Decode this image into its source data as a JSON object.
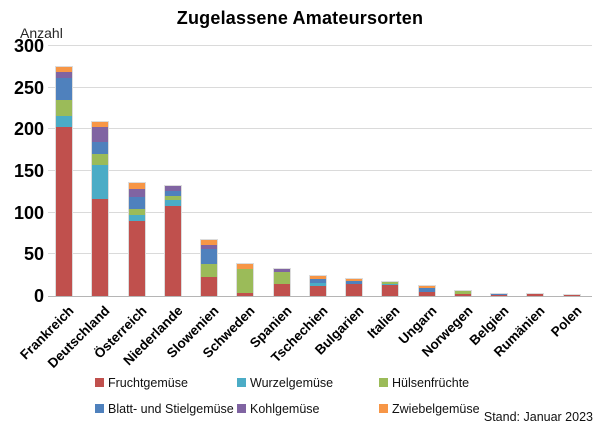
{
  "title": "Zugelassene Amateursorten",
  "footnote": "Stand: Januar 2023",
  "chart_data": {
    "type": "bar",
    "stacked": true,
    "title": "Zugelassene Amateursorten",
    "ylabel": "Anzahl",
    "xlabel": "",
    "ylim": [
      0,
      300
    ],
    "ytick_step": 50,
    "grid": "horizontal-gridlines",
    "legend_position": "bottom",
    "categories": [
      "Frankreich",
      "Deutschland",
      "Österreich",
      "Niederlande",
      "Slowenien",
      "Schweden",
      "Spanien",
      "Tschechien",
      "Bulgarien",
      "Italien",
      "Ungarn",
      "Norwegen",
      "Belgien",
      "Rumänien",
      "Polen"
    ],
    "series": [
      {
        "name": "Fruchtgemüse",
        "color": "#C0504D",
        "values": [
          203,
          117,
          90,
          108,
          23,
          4,
          15,
          12,
          14,
          13,
          5,
          3,
          1,
          3,
          1
        ]
      },
      {
        "name": "Wurzelgemüse",
        "color": "#4BACC6",
        "values": [
          13,
          40,
          7,
          7,
          0,
          0,
          0,
          4,
          0,
          2,
          0,
          0,
          0,
          0,
          0
        ]
      },
      {
        "name": "Hülsenfrüchte",
        "color": "#9BBB59",
        "values": [
          19,
          14,
          7,
          5,
          16,
          28,
          14,
          0,
          0,
          2,
          0,
          3,
          0,
          0,
          0
        ]
      },
      {
        "name": "Blatt- und Stielgemüse",
        "color": "#4F81BD",
        "values": [
          27,
          14,
          15,
          6,
          17,
          0,
          0,
          5,
          4,
          0,
          5,
          0,
          2,
          0,
          0
        ]
      },
      {
        "name": "Kohlgemüse",
        "color": "#8064A2",
        "values": [
          7,
          18,
          9,
          6,
          5,
          0,
          3,
          0,
          0,
          0,
          0,
          0,
          0,
          0,
          0
        ]
      },
      {
        "name": "Zwiebelgemüse",
        "color": "#F79646",
        "values": [
          6,
          6,
          8,
          0,
          6,
          6,
          0,
          3,
          3,
          0,
          2,
          0,
          0,
          0,
          0
        ]
      }
    ],
    "totals": [
      275,
      209,
      136,
      132,
      67,
      38,
      32,
      24,
      21,
      17,
      12,
      6,
      3,
      3,
      1
    ]
  }
}
